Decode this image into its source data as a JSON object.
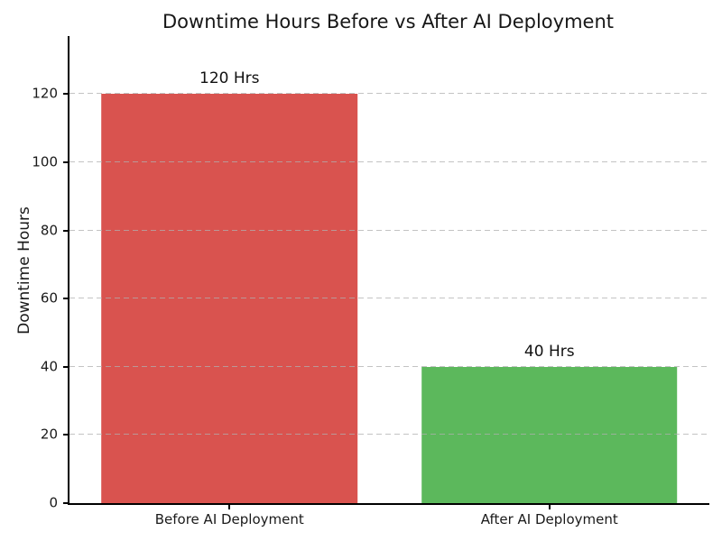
{
  "chart_data": {
    "type": "bar",
    "title": "Downtime Hours Before vs After AI Deployment",
    "xlabel": "",
    "ylabel": "Downtime Hours",
    "categories": [
      "Before AI Deployment",
      "After AI Deployment"
    ],
    "values": [
      120,
      40
    ],
    "value_labels": [
      "120 Hrs",
      "40 Hrs"
    ],
    "bar_colors": [
      "#d9534f",
      "#5cb85c"
    ],
    "yticks": [
      0,
      20,
      40,
      60,
      80,
      100,
      120
    ],
    "ylim": [
      0,
      137
    ],
    "grid": "horizontal dashed, drawn over bars",
    "legend": "none",
    "spines": "left and bottom only, black"
  },
  "colors": {
    "background": "#ffffff",
    "spine": "#000000",
    "gridline": "#afafaf",
    "title_text": "#171717",
    "tick_text": "#1a1a1a"
  }
}
